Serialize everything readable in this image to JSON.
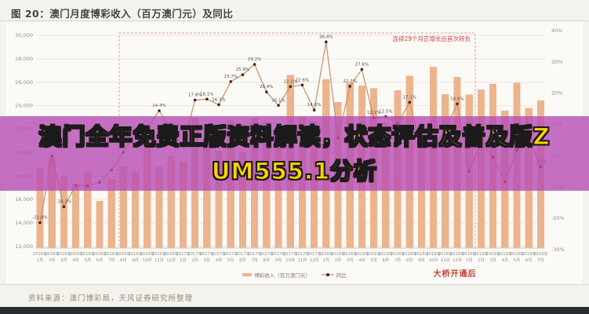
{
  "title": "图 20：澳门月度博彩收入（百万澳门元）及同比",
  "source": "资料来源：澳门博彩局，天风证券研究所整理",
  "overlay": {
    "line1": "澳门全年免费正版资料解读，状态评估及普及版Z",
    "line2": "UM555.1分析",
    "bg_color": "#b84cb4",
    "text_color": "#ffd400"
  },
  "annotations": {
    "dashed_box_label": "连续29个月正增长后首次转负",
    "post_bridge_label": "大桥开通后",
    "accent_red": "#c43b2c"
  },
  "legend": {
    "bar_label": "博彩收入（百万澳门元）",
    "line_label": "同比"
  },
  "colors": {
    "bar": "#ecb48d",
    "line": "#c69064",
    "dot": "#4a241a",
    "grid": "#e9e7e1",
    "axis_text": "#8f8f8b",
    "value_label": "#4d4d4d",
    "dashed_box": "#e2a0a0"
  },
  "chart_data": {
    "type": "bar+line",
    "title": "澳门月度博彩收入（百万澳门元）及同比",
    "x": [
      "2016年1月",
      "2016年2月",
      "2016年3月",
      "2016年4月",
      "2016年5月",
      "2016年6月",
      "2016年7月",
      "2016年8月",
      "2016年9月",
      "2016年10月",
      "2016年11月",
      "2016年12月",
      "2017年1月",
      "2017年2月",
      "2017年3月",
      "2017年4月",
      "2017年5月",
      "2017年6月",
      "2017年7月",
      "2017年8月",
      "2017年9月",
      "2017年10月",
      "2017年11月",
      "2017年12月",
      "2018年1月",
      "2018年2月",
      "2018年3月",
      "2018年4月",
      "2018年5月",
      "2018年6月",
      "2018年7月",
      "2018年8月",
      "2018年9月",
      "2018年10月",
      "2018年11月",
      "2018年12月",
      "2019年1月",
      "2019年2月",
      "2019年3月",
      "2019年4月",
      "2019年5月",
      "2019年6月",
      "2019年7月"
    ],
    "series": [
      {
        "name": "博彩收入（百万澳门元）",
        "type": "bar",
        "axis": "left",
        "values": [
          18674,
          19520,
          17980,
          17340,
          18389,
          15885,
          17770,
          18837,
          18405,
          21815,
          18789,
          19743,
          19255,
          22989,
          21224,
          20164,
          22744,
          19992,
          22965,
          22676,
          21408,
          26630,
          23038,
          22641,
          26265,
          24312,
          25952,
          25727,
          25488,
          22490,
          25327,
          26559,
          21952,
          27328,
          24995,
          26468,
          24942,
          25370,
          25840,
          23588,
          25952,
          23812,
          24453
        ]
      },
      {
        "name": "同比",
        "type": "line",
        "axis": "right",
        "values": [
          -21.4,
          -0.1,
          -16.3,
          -9.5,
          -9.6,
          -8.5,
          -4.5,
          1.1,
          7.4,
          8.8,
          14.4,
          8.0,
          3.1,
          17.8,
          18.1,
          16.3,
          23.7,
          25.9,
          29.2,
          20.4,
          16.1,
          22.1,
          22.6,
          14.6,
          36.4,
          5.7,
          22.2,
          27.6,
          12.1,
          12.5,
          10.3,
          17.1,
          2.8,
          2.6,
          8.5,
          16.6,
          -5.0,
          4.4,
          -0.4,
          -8.3,
          1.8,
          5.9,
          -3.5
        ]
      }
    ],
    "left_axis": {
      "min": 12000,
      "max": 30000,
      "step": 2000,
      "ticks": [
        "30,000",
        "28,000",
        "26,000",
        "24,000",
        "22,000",
        "20,000",
        "18,000",
        "16,000",
        "14,000",
        "12,000"
      ]
    },
    "right_axis": {
      "min": -30,
      "max": 40,
      "step": 10,
      "ticks": [
        "40%",
        "30%",
        "20%",
        "10%",
        "0%",
        "-10%",
        "-20%",
        "-30%"
      ]
    },
    "grid": "horizontal",
    "legend_position": "bottom",
    "dashed_region_months": [
      "2016年8月",
      "2018年12月"
    ]
  }
}
